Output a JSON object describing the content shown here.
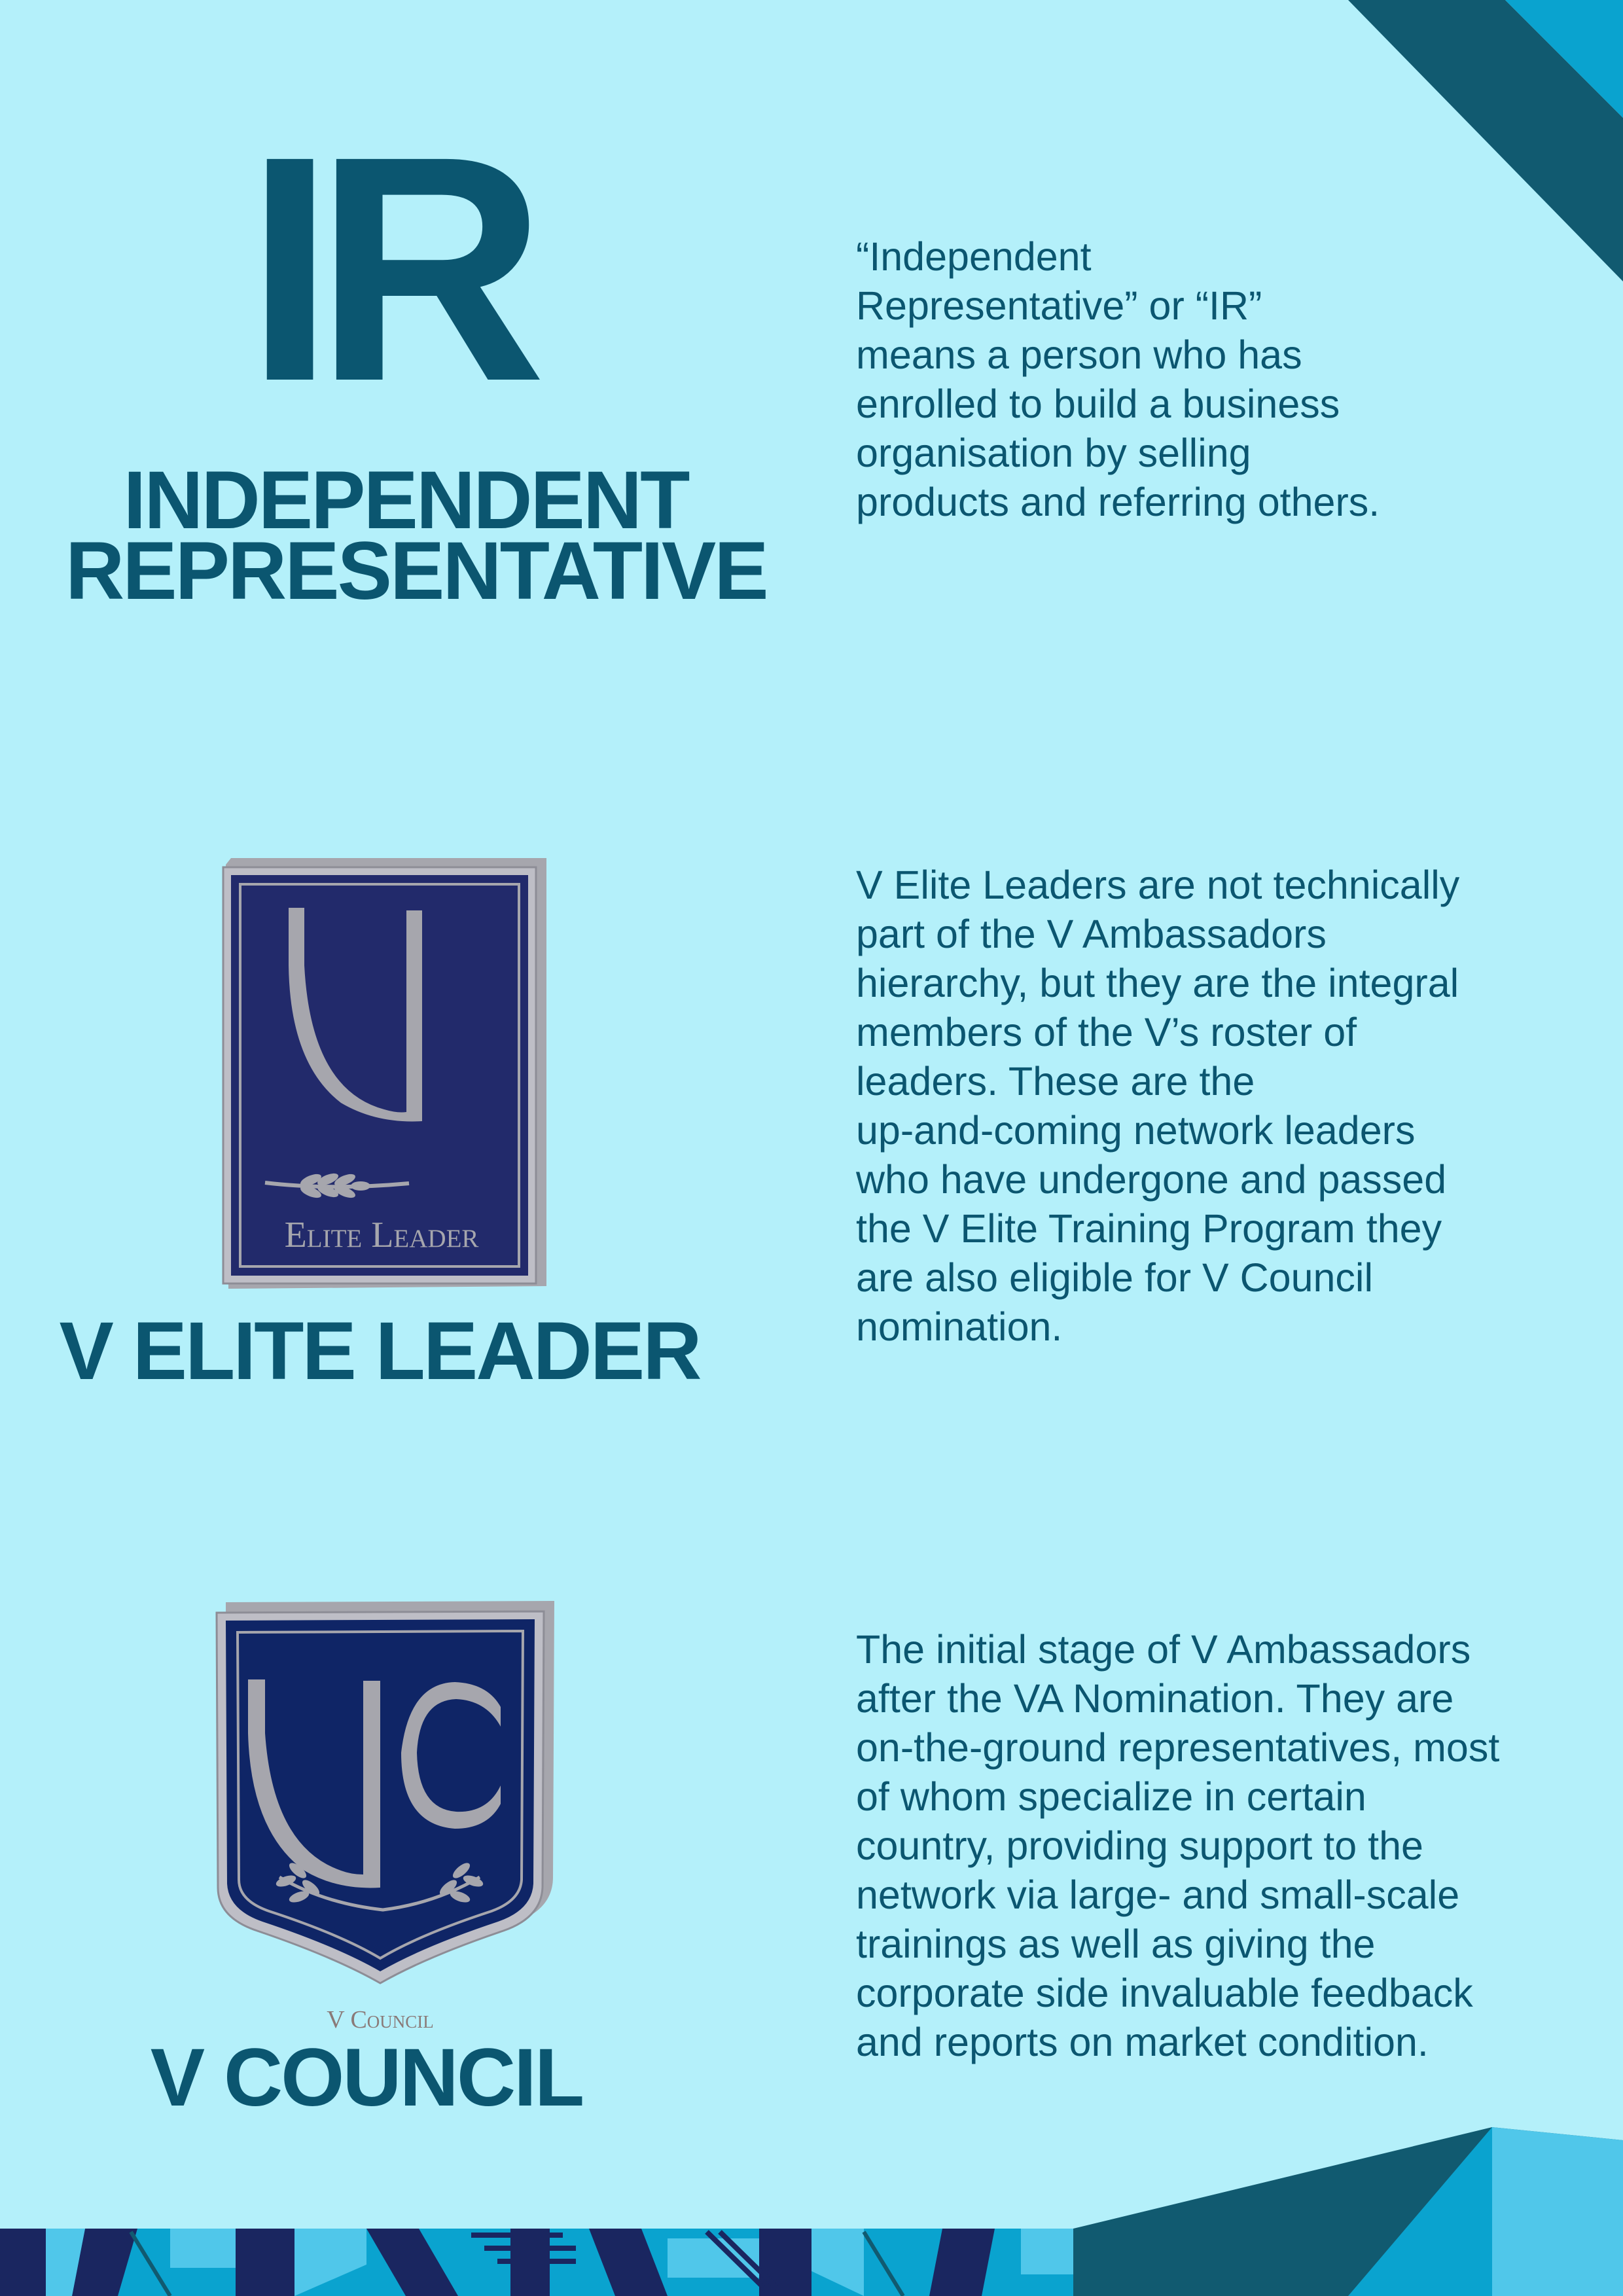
{
  "colors": {
    "background": "#b4f0fa",
    "heading": "#0b5670",
    "dark_teal": "#115a70",
    "bright_blue": "#0aa3cf",
    "light_blue": "#50c7ea",
    "navy": "#1a2660",
    "badge_navy": "#222a6b",
    "badge_council": "#0f2566",
    "badge_silver": "#a6a6ad"
  },
  "ir_section": {
    "abbr": "IR",
    "title_line1": "INDEPENDENT",
    "title_line2": "REPRESENTATIVE",
    "description": "“Independent\nRepresentative” or “IR”\nmeans a person who has\nenrolled to build a business\norganisation by selling\nproducts and referring others."
  },
  "elite_section": {
    "badge_text": "Elite Leader",
    "title": "V ELITE LEADER",
    "description": "V Elite Leaders are not technically\npart of the V Ambassadors\nhierarchy, but they are the integral\nmembers of the V’s roster of\nleaders.  These are the\nup-and-coming network leaders\nwho have undergone and passed\nthe V Elite Training Program they\nare also eligible for V Council\nnomination."
  },
  "council_section": {
    "badge_text": "V Council",
    "title": "V COUNCIL",
    "description": "The initial stage of V Ambassadors\nafter the VA Nomination. They are\non-the-ground representatives, most\nof whom specialize in certain\ncountry, providing support to the\nnetwork via large- and small-scale\ntrainings as well as giving the\ncorporate side invaluable feedback\nand reports on market condition."
  },
  "decorations": [
    "corner-stripes-top-right",
    "geometric-pattern-bottom"
  ]
}
